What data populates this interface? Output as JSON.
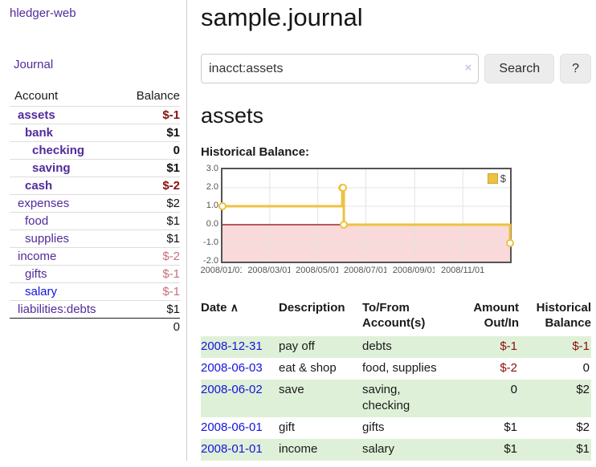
{
  "sidebar": {
    "brand": "hledger-web",
    "nav_journal": "Journal",
    "accounts_table": {
      "col_account": "Account",
      "col_balance": "Balance",
      "rows": [
        {
          "name": "assets",
          "balance": "$-1",
          "level": 1,
          "bold": true,
          "tone": "neg-strong",
          "link": "purple"
        },
        {
          "name": "bank",
          "balance": "$1",
          "level": 2,
          "bold": true,
          "tone": "pos",
          "link": "purple"
        },
        {
          "name": "checking",
          "balance": "0",
          "level": 3,
          "bold": true,
          "tone": "pos",
          "link": "purple"
        },
        {
          "name": "saving",
          "balance": "$1",
          "level": 3,
          "bold": true,
          "tone": "pos",
          "link": "purple"
        },
        {
          "name": "cash",
          "balance": "$-2",
          "level": 2,
          "bold": true,
          "tone": "neg-strong",
          "link": "purple"
        },
        {
          "name": "expenses",
          "balance": "$2",
          "level": 1,
          "bold": false,
          "tone": "pos",
          "link": "purple"
        },
        {
          "name": "food",
          "balance": "$1",
          "level": 2,
          "bold": false,
          "tone": "pos",
          "link": "purple"
        },
        {
          "name": "supplies",
          "balance": "$1",
          "level": 2,
          "bold": false,
          "tone": "pos",
          "link": "purple"
        },
        {
          "name": "income",
          "balance": "$-2",
          "level": 1,
          "bold": false,
          "tone": "neg-soft",
          "link": "purple"
        },
        {
          "name": "gifts",
          "balance": "$-1",
          "level": 2,
          "bold": false,
          "tone": "neg-soft",
          "link": "purple"
        },
        {
          "name": "salary",
          "balance": "$-1",
          "level": 2,
          "bold": false,
          "tone": "neg-soft",
          "link": "blue"
        },
        {
          "name": "liabilities:debts",
          "balance": "$1",
          "level": 1,
          "bold": false,
          "tone": "pos",
          "link": "purple"
        }
      ],
      "total": "0"
    }
  },
  "header": {
    "title": "sample.journal"
  },
  "search": {
    "value": "inacct:assets",
    "clear_icon": "×",
    "button_label": "Search",
    "help_label": "?"
  },
  "account_page": {
    "heading": "assets",
    "chart_label": "Historical Balance:"
  },
  "chart_data": {
    "type": "line",
    "step": true,
    "title": "Historical Balance",
    "series": [
      {
        "name": "$",
        "color": "#edc240",
        "points": [
          [
            "2008-01-01",
            1
          ],
          [
            "2008-06-01",
            2
          ],
          [
            "2008-06-02",
            2
          ],
          [
            "2008-06-03",
            0
          ],
          [
            "2008-12-31",
            -1
          ]
        ]
      }
    ],
    "xlim": [
      "2008-01-01",
      "2008-12-31"
    ],
    "ylim": [
      -2,
      3
    ],
    "yticks": [
      "3.0",
      "2.0",
      "1.0",
      "0.0",
      "-1.0",
      "-2.0"
    ],
    "xticks": [
      "2008/01/01",
      "2008/03/01",
      "2008/05/01",
      "2008/07/01",
      "2008/09/01",
      "2008/11/01"
    ],
    "legend_position": "top-right",
    "grid": true,
    "negative_region_color": "#f9d9d9",
    "zero_line_color": "#8b0000",
    "grid_color": "#e3e3e3"
  },
  "transactions": {
    "headers": {
      "date": "Date",
      "sort_icon": "∧",
      "description": "Description",
      "tofrom": "To/From\nAccount(s)",
      "amount": "Amount\nOut/In",
      "historical": "Historical\nBalance"
    },
    "rows": [
      {
        "date": "2008-12-31",
        "description": "pay off",
        "accounts": "debts",
        "amount": "$-1",
        "balance": "$-1",
        "amount_tone": "neg-strong",
        "balance_tone": "neg-strong",
        "stripe": true
      },
      {
        "date": "2008-06-03",
        "description": "eat & shop",
        "accounts": "food, supplies",
        "amount": "$-2",
        "balance": "0",
        "amount_tone": "neg-strong",
        "balance_tone": "pos",
        "stripe": false
      },
      {
        "date": "2008-06-02",
        "description": "save",
        "accounts": "saving,\nchecking",
        "amount": "0",
        "balance": "$2",
        "amount_tone": "pos",
        "balance_tone": "pos",
        "stripe": true
      },
      {
        "date": "2008-06-01",
        "description": "gift",
        "accounts": "gifts",
        "amount": "$1",
        "balance": "$2",
        "amount_tone": "pos",
        "balance_tone": "pos",
        "stripe": false
      },
      {
        "date": "2008-01-01",
        "description": "income",
        "accounts": "salary",
        "amount": "$1",
        "balance": "$1",
        "amount_tone": "pos",
        "balance_tone": "pos",
        "stripe": true
      }
    ]
  },
  "colors": {
    "accent_purple": "#512b9a",
    "link_blue": "#1414dd",
    "negative_strong": "#8b0d0d",
    "negative_soft": "#c4707c",
    "row_stripe_green": "#dff0d8",
    "chart_series_gold": "#edc240"
  }
}
